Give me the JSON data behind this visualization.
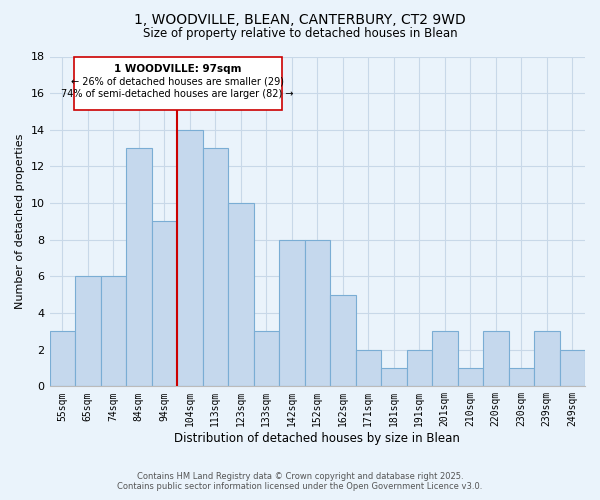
{
  "title": "1, WOODVILLE, BLEAN, CANTERBURY, CT2 9WD",
  "subtitle": "Size of property relative to detached houses in Blean",
  "xlabel": "Distribution of detached houses by size in Blean",
  "ylabel": "Number of detached properties",
  "categories": [
    "55sqm",
    "65sqm",
    "74sqm",
    "84sqm",
    "94sqm",
    "104sqm",
    "113sqm",
    "123sqm",
    "133sqm",
    "142sqm",
    "152sqm",
    "162sqm",
    "171sqm",
    "181sqm",
    "191sqm",
    "201sqm",
    "210sqm",
    "220sqm",
    "230sqm",
    "239sqm",
    "249sqm"
  ],
  "values": [
    3,
    6,
    6,
    13,
    9,
    14,
    13,
    10,
    3,
    8,
    8,
    5,
    2,
    1,
    2,
    3,
    1,
    3,
    1,
    3,
    2
  ],
  "bar_color": "#c5d8ed",
  "bar_edge_color": "#7aadd4",
  "highlight_index": 4,
  "highlight_line_color": "#cc0000",
  "ylim": [
    0,
    18
  ],
  "yticks": [
    0,
    2,
    4,
    6,
    8,
    10,
    12,
    14,
    16,
    18
  ],
  "annotation_title": "1 WOODVILLE: 97sqm",
  "annotation_line1": "← 26% of detached houses are smaller (29)",
  "annotation_line2": "74% of semi-detached houses are larger (82) →",
  "annotation_box_color": "#ffffff",
  "annotation_box_edge": "#cc0000",
  "grid_color": "#c8d8e8",
  "background_color": "#eaf3fb",
  "footer_line1": "Contains HM Land Registry data © Crown copyright and database right 2025.",
  "footer_line2": "Contains public sector information licensed under the Open Government Licence v3.0."
}
